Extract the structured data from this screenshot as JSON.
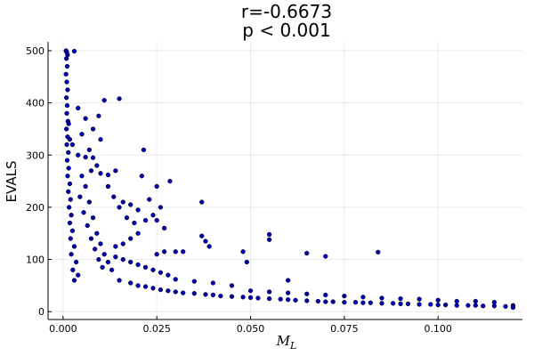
{
  "chart_data": {
    "type": "scatter",
    "title_line1": "r=-0.6673",
    "title_line2": "p < 0.001",
    "ylabel": "EVALS",
    "xlabel_main": "M",
    "xlabel_sub": "L",
    "xlim": [
      -0.004,
      0.1225
    ],
    "ylim": [
      -15,
      517
    ],
    "xticks": [
      0.0,
      0.025,
      0.05,
      0.075,
      0.1
    ],
    "xtick_labels": [
      "0.000",
      "0.025",
      "0.050",
      "0.075",
      "0.100"
    ],
    "yticks": [
      0,
      100,
      200,
      300,
      400,
      500
    ],
    "ytick_labels": [
      "0",
      "100",
      "200",
      "300",
      "400",
      "500"
    ],
    "grid": true,
    "legend": "none",
    "marker_color": "#0000b3",
    "marker_edge": "#000000",
    "points": [
      [
        0.0008,
        500
      ],
      [
        0.001,
        497
      ],
      [
        0.0012,
        492
      ],
      [
        0.0009,
        485
      ],
      [
        0.0011,
        470
      ],
      [
        0.0008,
        455
      ],
      [
        0.001,
        440
      ],
      [
        0.0012,
        425
      ],
      [
        0.003,
        499
      ],
      [
        0.0009,
        410
      ],
      [
        0.0011,
        395
      ],
      [
        0.001,
        380
      ],
      [
        0.0013,
        365
      ],
      [
        0.0009,
        350
      ],
      [
        0.0012,
        335
      ],
      [
        0.001,
        320
      ],
      [
        0.0014,
        305
      ],
      [
        0.0011,
        290
      ],
      [
        0.0015,
        275
      ],
      [
        0.0012,
        260
      ],
      [
        0.0018,
        245
      ],
      [
        0.0014,
        230
      ],
      [
        0.002,
        215
      ],
      [
        0.0016,
        200
      ],
      [
        0.0022,
        185
      ],
      [
        0.0018,
        170
      ],
      [
        0.0025,
        155
      ],
      [
        0.002,
        140
      ],
      [
        0.003,
        125
      ],
      [
        0.0022,
        110
      ],
      [
        0.0035,
        95
      ],
      [
        0.0026,
        80
      ],
      [
        0.004,
        70
      ],
      [
        0.003,
        60
      ],
      [
        0.0015,
        360
      ],
      [
        0.0018,
        330
      ],
      [
        0.0025,
        320
      ],
      [
        0.004,
        300
      ],
      [
        0.005,
        260
      ],
      [
        0.006,
        240
      ],
      [
        0.0045,
        220
      ],
      [
        0.007,
        210
      ],
      [
        0.0055,
        190
      ],
      [
        0.008,
        180
      ],
      [
        0.0065,
        165
      ],
      [
        0.009,
        150
      ],
      [
        0.0075,
        140
      ],
      [
        0.01,
        130
      ],
      [
        0.0085,
        120
      ],
      [
        0.011,
        110
      ],
      [
        0.0095,
        100
      ],
      [
        0.012,
        95
      ],
      [
        0.0105,
        85
      ],
      [
        0.013,
        80
      ],
      [
        0.006,
        296
      ],
      [
        0.008,
        295
      ],
      [
        0.009,
        280
      ],
      [
        0.0075,
        270
      ],
      [
        0.01,
        265
      ],
      [
        0.012,
        262
      ],
      [
        0.014,
        270
      ],
      [
        0.0095,
        375
      ],
      [
        0.011,
        405
      ],
      [
        0.015,
        408
      ],
      [
        0.004,
        390
      ],
      [
        0.006,
        370
      ],
      [
        0.008,
        350
      ],
      [
        0.01,
        330
      ],
      [
        0.005,
        340
      ],
      [
        0.007,
        310
      ],
      [
        0.012,
        240
      ],
      [
        0.0135,
        220
      ],
      [
        0.015,
        200
      ],
      [
        0.016,
        210
      ],
      [
        0.018,
        205
      ],
      [
        0.02,
        195
      ],
      [
        0.017,
        180
      ],
      [
        0.019,
        170
      ],
      [
        0.021,
        260
      ],
      [
        0.0215,
        310
      ],
      [
        0.023,
        215
      ],
      [
        0.025,
        240
      ],
      [
        0.0285,
        250
      ],
      [
        0.026,
        200
      ],
      [
        0.024,
        185
      ],
      [
        0.022,
        175
      ],
      [
        0.02,
        150
      ],
      [
        0.018,
        140
      ],
      [
        0.016,
        130
      ],
      [
        0.014,
        125
      ],
      [
        0.025,
        110
      ],
      [
        0.027,
        115
      ],
      [
        0.03,
        115
      ],
      [
        0.032,
        115
      ],
      [
        0.025,
        175
      ],
      [
        0.027,
        160
      ],
      [
        0.037,
        210
      ],
      [
        0.037,
        145
      ],
      [
        0.038,
        135
      ],
      [
        0.039,
        125
      ],
      [
        0.048,
        115
      ],
      [
        0.049,
        95
      ],
      [
        0.055,
        148
      ],
      [
        0.055,
        138
      ],
      [
        0.065,
        112
      ],
      [
        0.07,
        106
      ],
      [
        0.084,
        114
      ],
      [
        0.06,
        60
      ],
      [
        0.015,
        60
      ],
      [
        0.018,
        55
      ],
      [
        0.02,
        50
      ],
      [
        0.022,
        48
      ],
      [
        0.024,
        45
      ],
      [
        0.026,
        42
      ],
      [
        0.028,
        40
      ],
      [
        0.03,
        38
      ],
      [
        0.032,
        36
      ],
      [
        0.035,
        35
      ],
      [
        0.038,
        33
      ],
      [
        0.04,
        32
      ],
      [
        0.042,
        30
      ],
      [
        0.045,
        29
      ],
      [
        0.048,
        28
      ],
      [
        0.05,
        27
      ],
      [
        0.052,
        26
      ],
      [
        0.055,
        25
      ],
      [
        0.058,
        24
      ],
      [
        0.06,
        23
      ],
      [
        0.062,
        22
      ],
      [
        0.065,
        21
      ],
      [
        0.068,
        20
      ],
      [
        0.07,
        19
      ],
      [
        0.072,
        19
      ],
      [
        0.075,
        18
      ],
      [
        0.078,
        18
      ],
      [
        0.08,
        17
      ],
      [
        0.082,
        17
      ],
      [
        0.085,
        16
      ],
      [
        0.088,
        16
      ],
      [
        0.09,
        15
      ],
      [
        0.092,
        15
      ],
      [
        0.095,
        14
      ],
      [
        0.098,
        14
      ],
      [
        0.1,
        13
      ],
      [
        0.102,
        13
      ],
      [
        0.105,
        12
      ],
      [
        0.108,
        12
      ],
      [
        0.11,
        12
      ],
      [
        0.112,
        11
      ],
      [
        0.115,
        11
      ],
      [
        0.118,
        10
      ],
      [
        0.12,
        12
      ],
      [
        0.12,
        8
      ],
      [
        0.05,
        40
      ],
      [
        0.055,
        38
      ],
      [
        0.06,
        36
      ],
      [
        0.065,
        34
      ],
      [
        0.07,
        32
      ],
      [
        0.075,
        30
      ],
      [
        0.08,
        28
      ],
      [
        0.085,
        26
      ],
      [
        0.09,
        25
      ],
      [
        0.095,
        24
      ],
      [
        0.1,
        22
      ],
      [
        0.105,
        20
      ],
      [
        0.11,
        20
      ],
      [
        0.115,
        18
      ],
      [
        0.045,
        50
      ],
      [
        0.04,
        55
      ],
      [
        0.035,
        58
      ],
      [
        0.03,
        62
      ],
      [
        0.028,
        70
      ],
      [
        0.026,
        75
      ],
      [
        0.024,
        80
      ],
      [
        0.022,
        85
      ],
      [
        0.02,
        90
      ],
      [
        0.018,
        95
      ],
      [
        0.016,
        100
      ],
      [
        0.014,
        105
      ]
    ]
  }
}
